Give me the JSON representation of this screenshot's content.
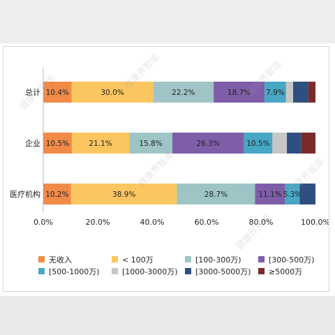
{
  "chart_data": {
    "type": "bar",
    "orientation": "horizontal-stacked-100",
    "categories": [
      "总计",
      "企业",
      "医疗机构"
    ],
    "series": [
      {
        "name": "无收入",
        "color": "#f28a47",
        "values": [
          10.4,
          10.5,
          10.2
        ],
        "labels": [
          "10.4%",
          "10.5%",
          "10.2%"
        ]
      },
      {
        "name": "< 100万",
        "color": "#fbc660",
        "values": [
          30.0,
          21.1,
          38.9
        ],
        "labels": [
          "30.0%",
          "21.1%",
          "38.9%"
        ]
      },
      {
        "name": "[100-300万)",
        "color": "#9fc4c6",
        "values": [
          22.2,
          15.8,
          28.7
        ],
        "labels": [
          "22.2%",
          "15.8%",
          "28.7%"
        ]
      },
      {
        "name": "[300-500万)",
        "color": "#7e5ea8",
        "values": [
          18.7,
          26.3,
          11.1
        ],
        "labels": [
          "18.7%",
          "26.3%",
          "11.1%"
        ]
      },
      {
        "name": "[500-1000万)",
        "color": "#47a7c4",
        "values": [
          7.9,
          10.5,
          5.3
        ],
        "labels": [
          "7.9%",
          "10.5%",
          "5.3%"
        ]
      },
      {
        "name": "[1000-3000万)",
        "color": "#c7c7c7",
        "values": [
          2.6,
          5.3,
          0
        ],
        "labels": [
          "",
          "",
          ""
        ]
      },
      {
        "name": "[3000-5000万)",
        "color": "#2f4f80",
        "values": [
          5.6,
          5.3,
          5.8
        ],
        "labels": [
          "",
          "",
          ""
        ]
      },
      {
        "name": "≥5000万",
        "color": "#7a2b2a",
        "values": [
          2.6,
          5.2,
          0
        ],
        "labels": [
          "",
          "",
          ""
        ]
      }
    ],
    "xlim": [
      0,
      100
    ],
    "xticks": [
      "0.0%",
      "20.0%",
      "40.0%",
      "60.0%",
      "80.0%",
      "100.0%"
    ],
    "grid": false,
    "legend_position": "bottom"
  },
  "watermark_text": "健康界智库"
}
